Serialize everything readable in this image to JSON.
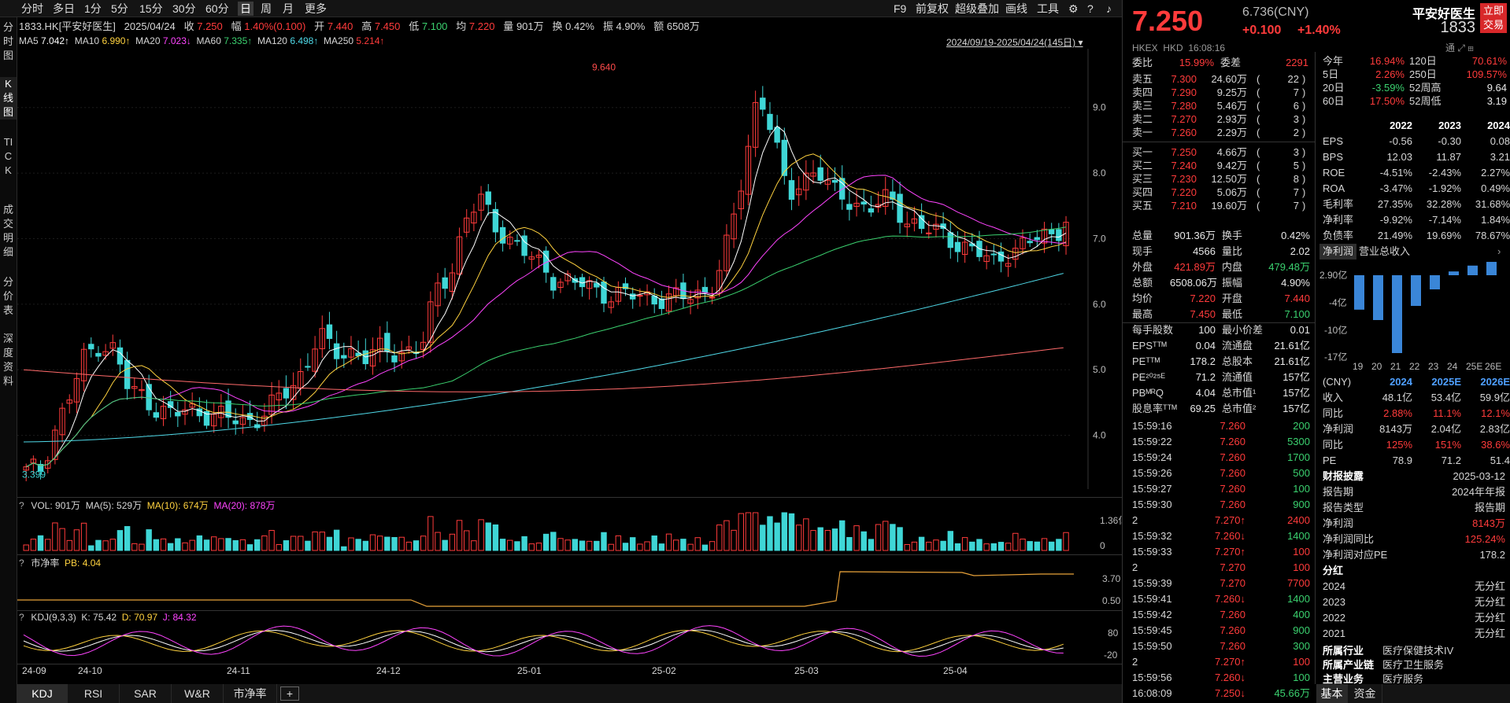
{
  "toolbar": {
    "periods": [
      "分时",
      "多日",
      "1分",
      "5分",
      "15分",
      "30分",
      "60分",
      "日",
      "周",
      "月",
      "更多"
    ],
    "active_period": "日",
    "tools": [
      "F9",
      "前复权",
      "超级叠加",
      "画线",
      "工具"
    ]
  },
  "side_tabs": [
    "分时图",
    "K线图",
    "TICK",
    "成交明细",
    "分价表",
    "深度资料"
  ],
  "info_bar": {
    "code": "1833.HK[平安好医生]",
    "date": "2025/04/24",
    "close_label": "收",
    "close": "7.250",
    "chg_label": "幅",
    "chg": "1.40%(0.100)",
    "open_label": "开",
    "open": "7.440",
    "high_label": "高",
    "high": "7.450",
    "low_label": "低",
    "low": "7.100",
    "avg_label": "均",
    "avg": "7.220",
    "vol_label": "量",
    "vol": "901万",
    "turn_label": "换",
    "turn": "0.42%",
    "amp_label": "振",
    "amp": "4.90%",
    "amt_label": "额",
    "amt": "6508万"
  },
  "ma_bar": [
    {
      "label": "MA5",
      "value": "7.042↑",
      "color": "#ffffff"
    },
    {
      "label": "MA10",
      "value": "6.990↑",
      "color": "#ffd23f"
    },
    {
      "label": "MA20",
      "value": "7.023↓",
      "color": "#ff44ff"
    },
    {
      "label": "MA60",
      "value": "7.335↑",
      "color": "#3bd16f"
    },
    {
      "label": "MA120",
      "value": "6.498↑",
      "color": "#4fd9e8"
    },
    {
      "label": "MA250",
      "value": "5.214↑",
      "color": "#ff6a6a"
    }
  ],
  "range_label": "2024/09/19-2025/04/24(145日)",
  "price_axis": [
    "9.0",
    "8.0",
    "7.0",
    "6.0",
    "5.0",
    "4.0"
  ],
  "high_mark": "9.640",
  "low_mark": "3.399",
  "vol_bar": {
    "label": "VOL: 901万",
    "ma5": "MA(5): 529万",
    "ma10": "MA(10): 674万",
    "ma20": "MA(20): 878万",
    "axis": [
      "1.36亿",
      "0"
    ]
  },
  "pb_bar": {
    "label": "市净率",
    "value": "PB: 4.04",
    "axis": [
      "3.70",
      "0.50"
    ]
  },
  "kdj_bar": {
    "label": "KDJ(9,3,3)",
    "k": "K: 75.42",
    "d": "D: 70.97",
    "j": "J: 84.32",
    "axis": [
      "80",
      "-20"
    ]
  },
  "date_axis": [
    "24-09",
    "24-10",
    "24-11",
    "24-12",
    "25-01",
    "25-02",
    "25-03",
    "25-04"
  ],
  "bottom_tabs": [
    "KDJ",
    "RSI",
    "SAR",
    "W&R",
    "市净率"
  ],
  "quote": {
    "price": "7.250",
    "chg": "+0.100",
    "pct": "+1.40%",
    "cny": "6.736(CNY)",
    "name": "平安好医生",
    "code": "1833",
    "market": "HKEX",
    "currency": "HKD",
    "time": "16:08:16",
    "trade_btn": "立即交易"
  },
  "order_book": {
    "ratio_label": "委比",
    "ratio": "15.99%",
    "diff_label": "委差",
    "diff": "2291",
    "asks": [
      {
        "label": "卖五",
        "price": "7.300",
        "vol": "24.60万",
        "cnt": "22"
      },
      {
        "label": "卖四",
        "price": "7.290",
        "vol": "9.25万",
        "cnt": "7"
      },
      {
        "label": "卖三",
        "price": "7.280",
        "vol": "5.46万",
        "cnt": "6"
      },
      {
        "label": "卖二",
        "price": "7.270",
        "vol": "2.93万",
        "cnt": "3"
      },
      {
        "label": "卖一",
        "price": "7.260",
        "vol": "2.29万",
        "cnt": "2"
      }
    ],
    "bids": [
      {
        "label": "买一",
        "price": "7.250",
        "vol": "4.66万",
        "cnt": "3"
      },
      {
        "label": "买二",
        "price": "7.240",
        "vol": "9.42万",
        "cnt": "5"
      },
      {
        "label": "买三",
        "price": "7.230",
        "vol": "12.50万",
        "cnt": "8"
      },
      {
        "label": "买四",
        "price": "7.220",
        "vol": "5.06万",
        "cnt": "7"
      },
      {
        "label": "买五",
        "price": "7.210",
        "vol": "19.60万",
        "cnt": "7"
      }
    ]
  },
  "stats": [
    [
      "总量",
      "901.36万",
      "换手",
      "0.42%"
    ],
    [
      "现手",
      "4566",
      "量比",
      "2.02"
    ],
    [
      "外盘",
      "421.89万",
      "内盘",
      "479.48万"
    ],
    [
      "总额",
      "6508.06万",
      "振幅",
      "4.90%"
    ],
    [
      "均价",
      "7.220",
      "开盘",
      "7.440"
    ],
    [
      "最高",
      "7.450",
      "最低",
      "7.100"
    ],
    [
      "每手股数",
      "100",
      "最小价差",
      "0.01"
    ],
    [
      "EPSᵀᵀᴹ",
      "0.04",
      "流通盘",
      "21.61亿"
    ],
    [
      "PEᵀᵀᴹ",
      "178.2",
      "总股本",
      "21.61亿"
    ],
    [
      "PE²⁰²⁵ᴱ",
      "71.2",
      "流通值",
      "157亿"
    ],
    [
      "PBᴹᴿQ",
      "4.04",
      "总市值¹",
      "157亿"
    ],
    [
      "股息率ᵀᵀᴹ",
      "69.25",
      "总市值²",
      "157亿"
    ]
  ],
  "ticks": [
    [
      "15:59:16",
      "7.260",
      "200",
      "g"
    ],
    [
      "15:59:22",
      "7.260",
      "5300",
      "g"
    ],
    [
      "15:59:24",
      "7.260",
      "1700",
      "g"
    ],
    [
      "15:59:26",
      "7.260",
      "500",
      "g"
    ],
    [
      "15:59:27",
      "7.260",
      "100",
      "g"
    ],
    [
      "15:59:30",
      "7.260",
      "900",
      "g"
    ],
    [
      "2",
      "7.270↑",
      "2400",
      "r"
    ],
    [
      "15:59:32",
      "7.260↓",
      "1400",
      "g"
    ],
    [
      "15:59:33",
      "7.270↑",
      "100",
      "r"
    ],
    [
      "2",
      "7.270",
      "100",
      "r"
    ],
    [
      "15:59:39",
      "7.270",
      "7700",
      "r"
    ],
    [
      "15:59:41",
      "7.260↓",
      "1400",
      "g"
    ],
    [
      "15:59:42",
      "7.260",
      "400",
      "g"
    ],
    [
      "15:59:45",
      "7.260",
      "900",
      "g"
    ],
    [
      "15:59:50",
      "7.260",
      "300",
      "g"
    ],
    [
      "2",
      "7.270↑",
      "100",
      "r"
    ],
    [
      "15:59:56",
      "7.260↓",
      "100",
      "g"
    ],
    [
      "16:08:09",
      "7.250↓",
      "45.66万",
      "g"
    ]
  ],
  "perf": [
    [
      "今年",
      "16.94%",
      "120日",
      "70.61%"
    ],
    [
      "5日",
      "2.26%",
      "250日",
      "109.57%"
    ],
    [
      "20日",
      "-3.59%",
      "52周高",
      "9.64"
    ],
    [
      "60日",
      "17.50%",
      "52周低",
      "3.19"
    ]
  ],
  "fin_years": [
    "2022",
    "2023",
    "2024"
  ],
  "fin_rows": [
    [
      "EPS",
      "-0.56",
      "-0.30",
      "0.08"
    ],
    [
      "BPS",
      "12.03",
      "11.87",
      "3.21"
    ],
    [
      "ROE",
      "-4.51%",
      "-2.43%",
      "2.27%"
    ],
    [
      "ROA",
      "-3.47%",
      "-1.92%",
      "0.49%"
    ],
    [
      "毛利率",
      "27.35%",
      "32.28%",
      "31.68%"
    ],
    [
      "净利率",
      "-9.92%",
      "-7.14%",
      "1.84%"
    ],
    [
      "负债率",
      "21.49%",
      "19.69%",
      "78.67%"
    ]
  ],
  "profit_chart": {
    "tabs": [
      "净利润",
      "营业总收入"
    ],
    "axis": [
      "2.90亿",
      "-4亿",
      "-10亿",
      "-17亿"
    ],
    "years": [
      "19",
      "20",
      "21",
      "22",
      "23",
      "24",
      "25E",
      "26E"
    ],
    "values": [
      -7.3,
      -9.5,
      -16.5,
      -6.5,
      -3.0,
      0.8,
      2.04,
      2.83
    ]
  },
  "forecast": {
    "unit": "(CNY)",
    "years": [
      "2024",
      "2025E",
      "2026E"
    ],
    "rows": [
      [
        "收入",
        "48.1亿",
        "53.4亿",
        "59.9亿"
      ],
      [
        "同比",
        "2.88%",
        "11.1%",
        "12.1%"
      ],
      [
        "净利润",
        "8143万",
        "2.04亿",
        "2.83亿"
      ],
      [
        "同比",
        "125%",
        "151%",
        "38.6%"
      ],
      [
        "PE",
        "78.9",
        "71.2",
        "51.4"
      ]
    ]
  },
  "report": {
    "title": "财报披露",
    "date": "2025-03-12",
    "rows": [
      [
        "报告期",
        "2024年年报"
      ],
      [
        "报告类型",
        "报告期"
      ],
      [
        "净利润",
        "8143万"
      ],
      [
        "净利润同比",
        "125.24%"
      ],
      [
        "净利润对应PE",
        "178.2"
      ]
    ]
  },
  "dividend": {
    "title": "分红",
    "rows": [
      [
        "2024",
        "无分红"
      ],
      [
        "2023",
        "无分红"
      ],
      [
        "2022",
        "无分红"
      ],
      [
        "2021",
        "无分红"
      ]
    ]
  },
  "industry": [
    [
      "所属行业",
      "医疗保健技术IV"
    ],
    [
      "所属产业链",
      "医疗卫生服务"
    ],
    [
      "主营业务",
      "医疗服务"
    ]
  ],
  "right_tabs": [
    "基本",
    "资金"
  ],
  "colors": {
    "up": "#ff3b3b",
    "down": "#3fd6d6",
    "bg": "#000000"
  },
  "chart_data": {
    "type": "candlestick",
    "x_range": [
      "2024-09-19",
      "2025-04-24"
    ],
    "y_range": [
      3.399,
      9.64
    ],
    "last_close": 7.25,
    "series": [
      {
        "name": "MA5",
        "last": 7.042
      },
      {
        "name": "MA10",
        "last": 6.99
      },
      {
        "name": "MA20",
        "last": 7.023
      },
      {
        "name": "MA60",
        "last": 7.335
      },
      {
        "name": "MA120",
        "last": 6.498
      },
      {
        "name": "MA250",
        "last": 5.214
      }
    ],
    "close_path": [
      3.45,
      3.5,
      4.1,
      4.6,
      5.2,
      5.4,
      5.3,
      4.7,
      4.6,
      4.4,
      4.3,
      4.4,
      4.35,
      4.3,
      4.25,
      4.2,
      4.3,
      4.5,
      4.7,
      5.0,
      5.6,
      5.2,
      5.3,
      5.2,
      5.3,
      5.25,
      5.3,
      5.35,
      6.2,
      6.5,
      7.3,
      7.6,
      7.2,
      7.0,
      6.8,
      6.6,
      6.4,
      6.35,
      6.3,
      6.2,
      6.15,
      6.15,
      6.1,
      6.1,
      6.1,
      6.1,
      6.15,
      6.3,
      7.0,
      8.0,
      9.3,
      8.6,
      7.6,
      7.9,
      8.1,
      7.7,
      7.6,
      7.5,
      7.5,
      7.6,
      7.3,
      7.2,
      7.1,
      7.0,
      6.9,
      6.8,
      6.6,
      6.8,
      6.9,
      7.0,
      7.05,
      7.25
    ]
  }
}
